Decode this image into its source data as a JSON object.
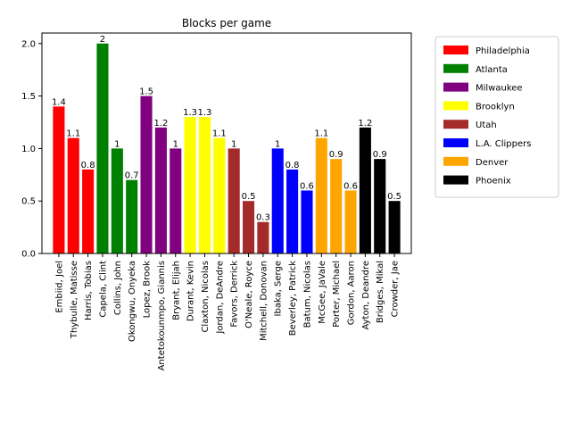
{
  "chart_data": {
    "type": "bar",
    "title": "Blocks per game",
    "xlabel": "",
    "ylabel": "",
    "ylim": [
      0,
      2.1
    ],
    "yticks": [
      "0.0",
      "0.5",
      "1.0",
      "1.5",
      "2.0"
    ],
    "grid": false,
    "legend_placement": "outside-right",
    "categories": [
      "Embiid, Joel",
      "Thybulle, Matisse",
      "Harris, Tobias",
      "Capela, Clint",
      "Collins, John",
      "Okongwu, Onyeka",
      "Lopez, Brook",
      "Antetokounmpo, Giannis",
      "Bryant, Elijah",
      "Durant, Kevin",
      "Claxton, Nicolas",
      "Jordan, DeAndre",
      "Favors, Derrick",
      "O'Neale, Royce",
      "Mitchell, Donovan",
      "Ibaka, Serge",
      "Beverley, Patrick",
      "Batum, Nicolas",
      "McGee, JaVale",
      "Porter, Michael",
      "Gordon, Aaron",
      "Ayton, Deandre",
      "Bridges, Mikal",
      "Crowder, Jae"
    ],
    "values": [
      1.4,
      1.1,
      0.8,
      2.0,
      1.0,
      0.7,
      1.5,
      1.2,
      1.0,
      1.3,
      1.3,
      1.1,
      1.0,
      0.5,
      0.3,
      1.0,
      0.8,
      0.6,
      1.1,
      0.9,
      0.6,
      1.2,
      0.9,
      0.5
    ],
    "data_labels": [
      "1.4",
      "1.1",
      "0.8",
      "2",
      "1",
      "0.7",
      "1.5",
      "1.2",
      "1",
      "1.3",
      "1.3",
      "1.1",
      "1",
      "0.5",
      "0.3",
      "1",
      "0.8",
      "0.6",
      "1.1",
      "0.9",
      "0.6",
      "1.2",
      "0.9",
      "0.5"
    ],
    "team_index": [
      0,
      0,
      0,
      1,
      1,
      1,
      2,
      2,
      2,
      3,
      3,
      3,
      4,
      4,
      4,
      5,
      5,
      5,
      6,
      6,
      6,
      7,
      7,
      7
    ],
    "legend": [
      {
        "name": "Philadelphia",
        "color": "#ff0000"
      },
      {
        "name": "Atlanta",
        "color": "#008000"
      },
      {
        "name": "Milwaukee",
        "color": "#800080"
      },
      {
        "name": "Brooklyn",
        "color": "#ffff00"
      },
      {
        "name": "Utah",
        "color": "#a52a2a"
      },
      {
        "name": "L.A. Clippers",
        "color": "#0000ff"
      },
      {
        "name": "Denver",
        "color": "#ffa500"
      },
      {
        "name": "Phoenix",
        "color": "#000000"
      }
    ]
  }
}
